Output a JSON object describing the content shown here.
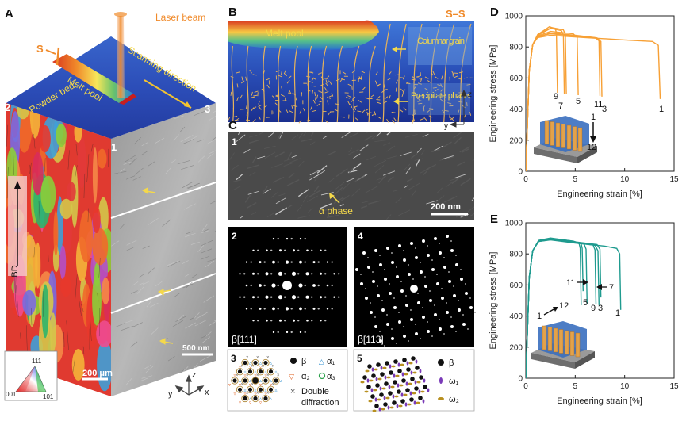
{
  "panel_a": {
    "letter": "A",
    "laser_label": "Laser beam",
    "melt_pool_label": "Melt pool",
    "scanning_label": "Scanning direction",
    "powder_bed_label": "Powder bed",
    "section_s_left": "S",
    "section_s_right": "S",
    "face_labels": [
      "1",
      "2",
      "3"
    ],
    "bd_label": "BD",
    "scale_bar_left": "200 μm",
    "scale_bar_right": "500 nm",
    "ipf_labels": [
      "111",
      "001",
      "101"
    ],
    "axes": [
      "z",
      "y",
      "x"
    ]
  },
  "panel_b": {
    "letter": "B",
    "title": "S–S",
    "melt_pool_label": "Melt pool",
    "columnar_label": "Columnar grain",
    "precipitate_label": "Precipitate phase",
    "axes": [
      "z",
      "y"
    ]
  },
  "panel_c": {
    "letter": "C",
    "sub1_number": "1",
    "alpha_label": "α phase",
    "scale_bar": "200 nm",
    "sub2_number": "2",
    "sub2_zone": "β[111]",
    "sub4_number": "4",
    "sub4_zone": "β[113]",
    "sub3_number": "3",
    "sub3_legend": [
      "β",
      "α₁",
      "α₂",
      "α₃",
      "Double",
      "diffraction"
    ],
    "sub5_number": "5",
    "sub5_legend": [
      "β",
      "ω₁",
      "ω₂"
    ]
  },
  "chart_data": [
    {
      "type": "line",
      "panel": "D",
      "xlabel": "Engineering strain [%]",
      "ylabel": "Engineering stress [MPa]",
      "xlim": [
        0,
        15
      ],
      "ylim": [
        0,
        1000
      ],
      "xticks": [
        0,
        5,
        10,
        15
      ],
      "yticks": [
        0,
        200,
        400,
        600,
        800,
        1000
      ],
      "color": "#f7a035",
      "series": [
        {
          "name": "1",
          "x": [
            0,
            0.35,
            0.7,
            1.2,
            2.5,
            6,
            10,
            12.8,
            13.4,
            13.6
          ],
          "y": [
            0,
            650,
            815,
            860,
            875,
            860,
            845,
            835,
            810,
            465
          ]
        },
        {
          "name": "3",
          "x": [
            0,
            0.35,
            0.7,
            1.2,
            2.5,
            5,
            7.2,
            7.6,
            7.7
          ],
          "y": [
            0,
            650,
            815,
            865,
            885,
            870,
            858,
            835,
            480
          ]
        },
        {
          "name": "11",
          "x": [
            0,
            0.35,
            0.7,
            1.2,
            2.5,
            5,
            7,
            7.4,
            7.5
          ],
          "y": [
            0,
            650,
            815,
            865,
            890,
            875,
            860,
            840,
            485
          ]
        },
        {
          "name": "5",
          "x": [
            0,
            0.35,
            0.7,
            1.2,
            2.5,
            4.8,
            5.2,
            5.3
          ],
          "y": [
            0,
            650,
            815,
            870,
            900,
            885,
            860,
            490
          ]
        },
        {
          "name": "7",
          "x": [
            0,
            0.35,
            0.7,
            1.2,
            2.5,
            3.6,
            3.8,
            3.9
          ],
          "y": [
            0,
            650,
            815,
            875,
            920,
            905,
            880,
            495
          ]
        },
        {
          "name": "9",
          "x": [
            0,
            0.35,
            0.7,
            1.2,
            2.4,
            3.0,
            3.1,
            3.2
          ],
          "y": [
            0,
            650,
            815,
            880,
            930,
            915,
            890,
            505
          ]
        },
        {
          "name": "12",
          "x": [
            0,
            0.35,
            0.7,
            1.2,
            2.6,
            3.8,
            4.0,
            4.1
          ],
          "y": [
            0,
            650,
            815,
            878,
            925,
            910,
            880,
            500
          ]
        }
      ],
      "curve_labels": [
        "9",
        "7",
        "5",
        "11",
        "3",
        "1"
      ],
      "inset_labels": [
        "1",
        "12"
      ]
    },
    {
      "type": "line",
      "panel": "E",
      "xlabel": "Engineering strain [%]",
      "ylabel": "Engineering stress [MPa]",
      "xlim": [
        0,
        15
      ],
      "ylim": [
        0,
        1000
      ],
      "xticks": [
        0,
        5,
        10,
        15
      ],
      "yticks": [
        0,
        200,
        400,
        600,
        800,
        1000
      ],
      "color": "#1f9b8f",
      "series": [
        {
          "name": "1",
          "x": [
            0,
            0.35,
            0.7,
            1.3,
            2.5,
            5,
            8,
            9.2,
            9.5,
            9.6
          ],
          "y": [
            0,
            650,
            820,
            880,
            890,
            870,
            850,
            835,
            800,
            440
          ]
        },
        {
          "name": "3",
          "x": [
            0,
            0.35,
            0.7,
            1.3,
            2.5,
            5,
            7.0,
            7.3,
            7.4
          ],
          "y": [
            0,
            650,
            820,
            880,
            892,
            872,
            855,
            820,
            470
          ]
        },
        {
          "name": "9",
          "x": [
            0,
            0.35,
            0.7,
            1.3,
            2.5,
            5,
            6.8,
            7.0,
            7.1
          ],
          "y": [
            0,
            650,
            820,
            882,
            895,
            875,
            858,
            825,
            475
          ]
        },
        {
          "name": "5",
          "x": [
            0,
            0.35,
            0.7,
            1.3,
            2.5,
            4.8,
            5.9,
            6.1,
            6.2
          ],
          "y": [
            0,
            650,
            820,
            885,
            898,
            880,
            862,
            830,
            480
          ]
        },
        {
          "name": "11",
          "x": [
            0,
            0.35,
            0.7,
            1.3,
            2.5,
            4.8,
            5.6,
            5.7,
            5.8
          ],
          "y": [
            0,
            650,
            820,
            885,
            900,
            882,
            865,
            835,
            560
          ]
        },
        {
          "name": "7",
          "x": [
            0,
            0.35,
            0.7,
            1.3,
            2.5,
            5,
            7.2,
            7.5,
            7.6
          ],
          "y": [
            0,
            650,
            820,
            883,
            897,
            877,
            860,
            830,
            520
          ]
        },
        {
          "name": "12",
          "x": [
            0,
            0.35,
            0.7,
            1.3,
            2.5,
            4.5,
            5.4,
            5.5,
            5.6
          ],
          "y": [
            0,
            650,
            820,
            887,
            902,
            884,
            866,
            836,
            470
          ]
        }
      ],
      "curve_labels": [
        "11",
        "7",
        "5",
        "9",
        "3",
        "1"
      ],
      "inset_labels": [
        "1",
        "12"
      ]
    }
  ]
}
